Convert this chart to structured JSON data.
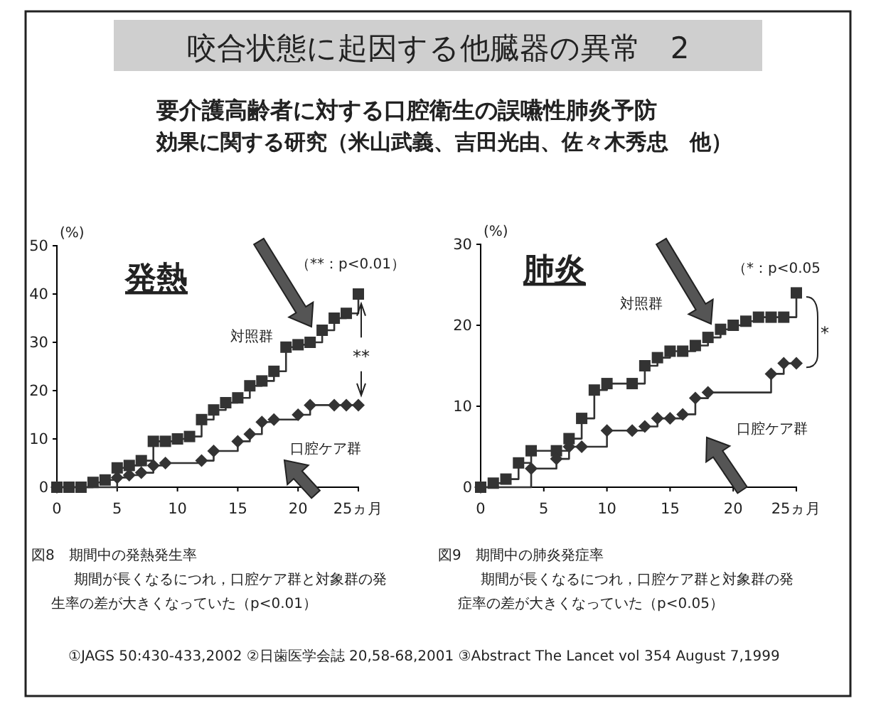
{
  "chart_data": [
    {
      "type": "step",
      "title": "咬合状態に起因する他臓器の異常　2",
      "subtitle": "要介護高齢者に対する口腔衛生の誤嚥性肺炎予防効果に関する研究（米山武義、吉田光由、佐々木秀忠　他）",
      "annotations": [
        "発熱",
        "（**：p<0.01）",
        "**",
        "図8　期間中の発熱発生率",
        "期間が長くなるにつれ，口腔ケア群と対象群の発生率の差が大きくなっていた（p<0.01）"
      ],
      "ylabel": "(%)",
      "xlim": [
        0,
        25
      ],
      "ylim": [
        0,
        50
      ],
      "xticks": [
        0,
        5,
        10,
        15,
        20,
        {
          "value": 25,
          "label": "25ヵ月"
        }
      ],
      "yticks": [
        0,
        10,
        20,
        30,
        40,
        50
      ],
      "series": [
        {
          "name": "対照群",
          "color": "#333333",
          "marker": "square",
          "x": [
            0,
            1,
            2,
            3,
            4,
            5,
            6,
            7,
            8,
            9,
            10,
            11,
            12,
            13,
            14,
            15,
            16,
            17,
            18,
            19,
            20,
            21,
            22,
            23,
            24,
            25
          ],
          "values": [
            0,
            0,
            0,
            1,
            1.5,
            4,
            4.5,
            5.5,
            9.5,
            9.5,
            10,
            10.5,
            14,
            16,
            17.5,
            18.5,
            21,
            22,
            24,
            29,
            29.5,
            30,
            32.5,
            35,
            36,
            40
          ]
        },
        {
          "name": "口腔ケア群",
          "color": "#333333",
          "marker": "diamond",
          "x": [
            0,
            5,
            6,
            7,
            8,
            9,
            12,
            13,
            15,
            16,
            17,
            18,
            20,
            21,
            23,
            24,
            25
          ],
          "values": [
            0,
            2,
            2.5,
            3,
            4.5,
            5,
            5.5,
            7.5,
            9.5,
            11,
            13.5,
            14,
            15,
            17,
            17,
            17,
            17
          ]
        }
      ]
    },
    {
      "type": "step",
      "title": "肺炎",
      "annotations": [
        "（*：p<0.05",
        "*",
        "図9　期間中の肺炎発症率",
        "期間が長くなるにつれ，口腔ケア群と対象群の発症率の差が大きくなっていた（p<0.05）",
        "①JAGS 50:430-433,2002  ②日歯医学会誌 20,58-68,2001  ③Abstract The Lancet vol 354 August 7,1999"
      ],
      "ylabel": "(%)",
      "xlim": [
        0,
        25
      ],
      "ylim": [
        0,
        30
      ],
      "xticks": [
        0,
        5,
        10,
        15,
        20,
        {
          "value": 25,
          "label": "25ヵ月"
        }
      ],
      "yticks": [
        0,
        10,
        20,
        30
      ],
      "series": [
        {
          "name": "対照群",
          "color": "#333333",
          "marker": "square",
          "x": [
            0,
            1,
            2,
            3,
            4,
            6,
            7,
            8,
            9,
            10,
            12,
            13,
            14,
            15,
            16,
            17,
            18,
            19,
            20,
            21,
            22,
            23,
            24,
            25
          ],
          "values": [
            0,
            0.5,
            1,
            3,
            4.5,
            4.5,
            6,
            8.5,
            12,
            12.8,
            12.8,
            15,
            16,
            16.8,
            16.8,
            17.5,
            18.5,
            19.5,
            20,
            20.5,
            21,
            21,
            21,
            24
          ]
        },
        {
          "name": "口腔ケア群",
          "color": "#333333",
          "marker": "diamond",
          "x": [
            0,
            4,
            6,
            7,
            8,
            10,
            12,
            13,
            14,
            15,
            16,
            17,
            18,
            23,
            24,
            25
          ],
          "values": [
            0,
            2.3,
            3.5,
            5,
            5,
            7,
            7,
            7.5,
            8.5,
            8.5,
            9,
            11,
            11.7,
            14,
            15.3,
            15.3
          ]
        }
      ]
    }
  ]
}
